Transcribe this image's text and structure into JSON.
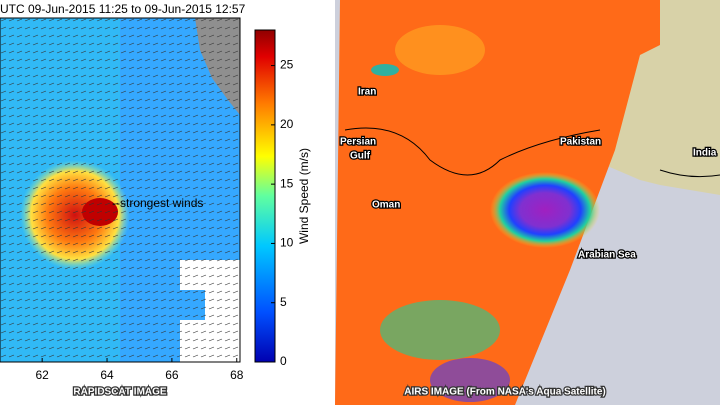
{
  "left_panel": {
    "title": "UTC 09-Jun-2015 11:25 to 09-Jun-2015 12:57",
    "annotation": "--strongest winds",
    "caption": "RAPIDSCAT IMAGE",
    "xlim": [
      60.7,
      68.1
    ],
    "xticks": [
      62,
      64,
      66,
      68
    ],
    "colorbar": {
      "label": "Wind Speed (m/s)",
      "lim": [
        0,
        28
      ],
      "ticks": [
        0,
        5,
        10,
        15,
        20,
        25
      ]
    }
  },
  "right_panel": {
    "labels": [
      "Iran",
      [
        "Persian",
        "Gulf"
      ],
      "Pakistan",
      "India",
      "Oman",
      "Arabian Sea"
    ],
    "caption": "AIRS IMAGE (From NASA's Aqua Satellite)"
  }
}
